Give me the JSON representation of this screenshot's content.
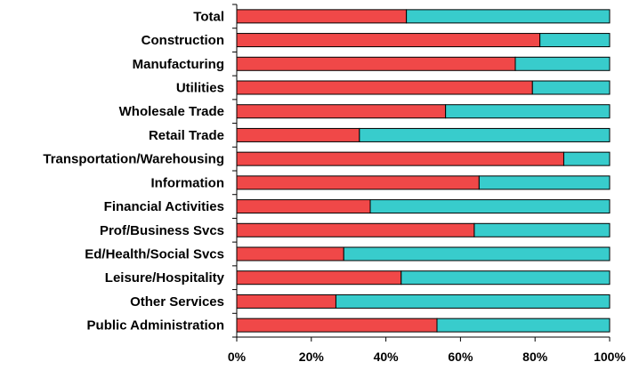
{
  "chart_data": {
    "type": "bar",
    "orientation": "horizontal",
    "stacked": true,
    "percent_stacked": true,
    "categories": [
      "Total",
      "Construction",
      "Manufacturing",
      "Utilities",
      "Wholesale Trade",
      "Retail Trade",
      "Transportation/Warehousing",
      "Information",
      "Financial Activities",
      "Prof/Business Svcs",
      "Ed/Health/Social Svcs",
      "Leisure/Hospitality",
      "Other Services",
      "Public Administration"
    ],
    "series": [
      {
        "color": "#f04848",
        "values": [
          45.5,
          81.3,
          74.7,
          79.3,
          56.0,
          32.9,
          87.7,
          65.0,
          35.8,
          63.7,
          28.7,
          44.1,
          26.6,
          53.7
        ]
      },
      {
        "color": "#38cccc",
        "values": [
          54.5,
          18.7,
          25.3,
          20.7,
          44.0,
          67.1,
          12.3,
          35.0,
          64.2,
          36.3,
          71.3,
          55.9,
          73.4,
          46.3
        ]
      }
    ],
    "x_ticks": [
      "0%",
      "20%",
      "40%",
      "60%",
      "80%",
      "100%"
    ],
    "xlim": [
      0,
      100
    ],
    "title": "",
    "xlabel": "",
    "ylabel": "",
    "grid": false,
    "legend": "none",
    "bar_outline_color": "#000000"
  }
}
